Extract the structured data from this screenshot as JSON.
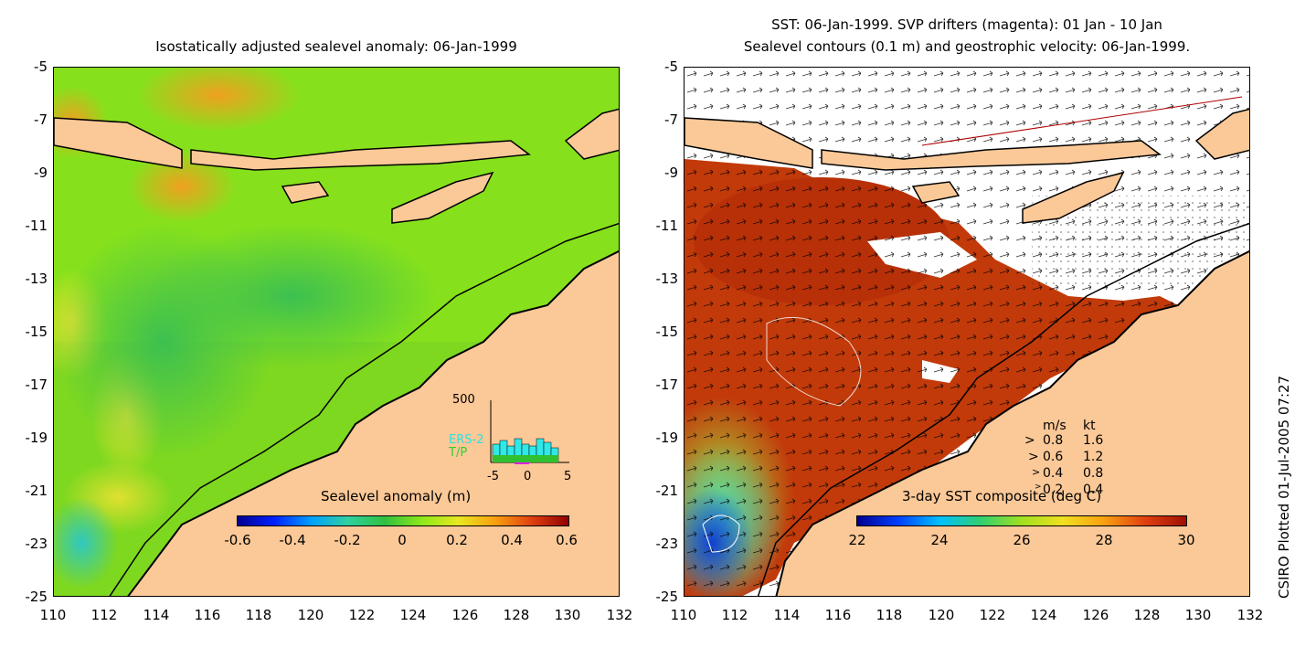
{
  "left": {
    "title": "Isostatically adjusted sealevel anomaly: 06-Jan-1999",
    "y_ticks": [
      "-5",
      "-7",
      "-9",
      "-11",
      "-13",
      "-15",
      "-17",
      "-19",
      "-21",
      "-23",
      "-25"
    ],
    "x_ticks": [
      "110",
      "112",
      "114",
      "116",
      "118",
      "120",
      "122",
      "124",
      "126",
      "128",
      "130",
      "132"
    ],
    "colorbar_label": "Sealevel anomaly (m)",
    "colorbar_ticks": [
      "-0.6",
      "-0.4",
      "-0.2",
      "0",
      "0.2",
      "0.4",
      "0.6"
    ],
    "hist": {
      "ymax_label": "500",
      "series_1": "ERS-2",
      "series_2": "T/P",
      "x_ticks": [
        "-5",
        "0",
        "5"
      ]
    }
  },
  "right": {
    "title_line1": "SST: 06-Jan-1999. SVP drifters (magenta): 01 Jan - 10 Jan",
    "title_line2": "Sealevel contours (0.1 m) and geostrophic velocity: 06-Jan-1999.",
    "y_ticks": [
      "-5",
      "-7",
      "-9",
      "-11",
      "-13",
      "-15",
      "-17",
      "-19",
      "-21",
      "-23",
      "-25"
    ],
    "x_ticks": [
      "110",
      "112",
      "114",
      "116",
      "118",
      "120",
      "122",
      "124",
      "126",
      "128",
      "130",
      "132"
    ],
    "colorbar_label": "3-day SST composite (deg C)",
    "colorbar_ticks": [
      "22",
      "24",
      "26",
      "28",
      "30"
    ],
    "velocity_legend": {
      "header_ms": "m/s",
      "header_kt": "kt",
      "rows": [
        {
          "ms": "0.8",
          "kt": "1.6"
        },
        {
          "ms": "0.6",
          "kt": "1.2"
        },
        {
          "ms": "0.4",
          "kt": "0.8"
        },
        {
          "ms": "0.2",
          "kt": "0.4"
        }
      ]
    }
  },
  "credit": "CSIRO Plotted 01-Jul-2005 07:27",
  "colors": {
    "land": "#fbc897",
    "sea_green": "#8cf014",
    "sst_red": "#c23a0a"
  }
}
